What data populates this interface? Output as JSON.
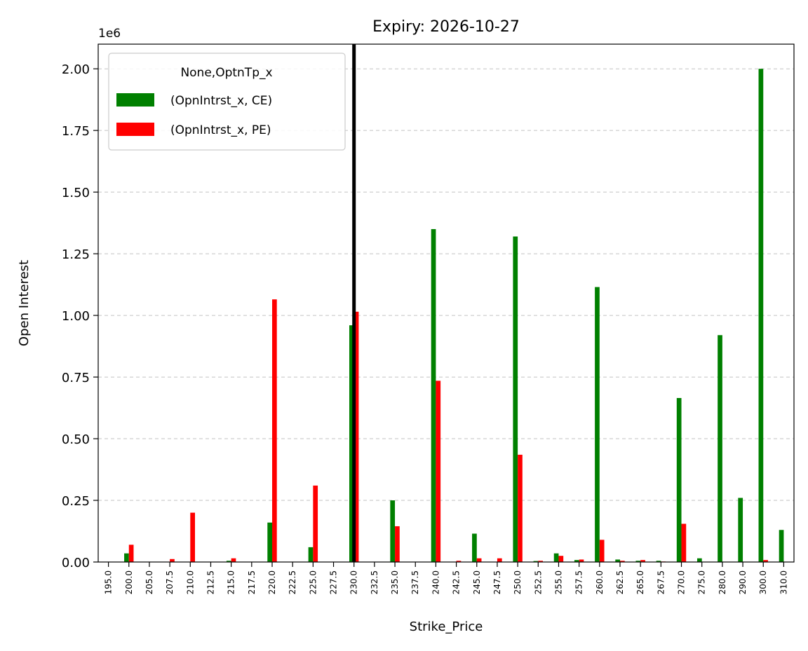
{
  "chart_data": {
    "type": "bar",
    "title": "Expiry: 2026-10-27",
    "xlabel": "Strike_Price",
    "ylabel": "Open Interest",
    "y_offset_label": "1e6",
    "ylim": [
      0,
      2.1
    ],
    "yticks": [
      "0.00",
      "0.25",
      "0.50",
      "0.75",
      "1.00",
      "1.25",
      "1.50",
      "1.75",
      "2.00"
    ],
    "grid": "y-dashed",
    "legend": {
      "title": "None,OptnTp_x",
      "placement": "top-left"
    },
    "reference_line": {
      "category": "230.0",
      "color": "#000000"
    },
    "categories": [
      "195.0",
      "200.0",
      "205.0",
      "207.5",
      "210.0",
      "212.5",
      "215.0",
      "217.5",
      "220.0",
      "222.5",
      "225.0",
      "227.5",
      "230.0",
      "232.5",
      "235.0",
      "237.5",
      "240.0",
      "242.5",
      "245.0",
      "247.5",
      "250.0",
      "252.5",
      "255.0",
      "257.5",
      "260.0",
      "262.5",
      "265.0",
      "267.5",
      "270.0",
      "275.0",
      "280.0",
      "290.0",
      "300.0",
      "310.0"
    ],
    "series": [
      {
        "name": "(OpnIntrst_x, CE)",
        "color": "#008000",
        "values": [
          0,
          0.035,
          0,
          0,
          0,
          0,
          0.005,
          0,
          0.16,
          0,
          0.06,
          0,
          0.96,
          0,
          0.25,
          0,
          1.35,
          0,
          0.115,
          0,
          1.32,
          0.004,
          0.035,
          0.008,
          1.115,
          0.01,
          0.005,
          0.005,
          0.665,
          0.015,
          0.92,
          0.26,
          2.0,
          0.13
        ]
      },
      {
        "name": "(OpnIntrst_x, PE)",
        "color": "#ff0000",
        "values": [
          0,
          0.07,
          0,
          0.012,
          0.2,
          0,
          0.015,
          0,
          1.065,
          0,
          0.31,
          0,
          1.015,
          0,
          0.145,
          0,
          0.735,
          0.005,
          0.015,
          0.015,
          0.435,
          0.005,
          0.025,
          0.01,
          0.09,
          0.005,
          0.008,
          0.002,
          0.155,
          0,
          0,
          0,
          0.008,
          0
        ]
      }
    ]
  }
}
